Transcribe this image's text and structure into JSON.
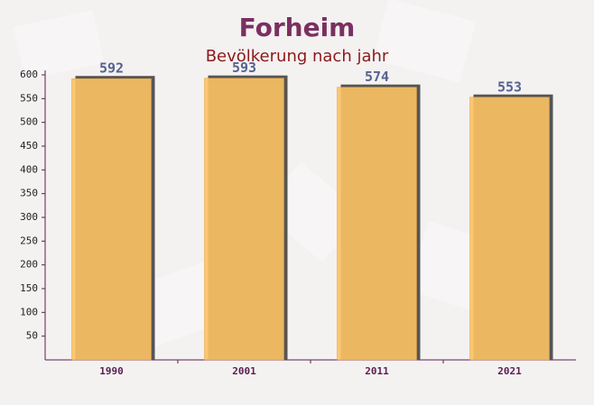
{
  "chart_data": {
    "type": "bar",
    "title": "Forheim",
    "subtitle": "Bevölkerung nach jahr",
    "categories": [
      "1990",
      "2001",
      "2011",
      "2021"
    ],
    "values": [
      592,
      593,
      574,
      553
    ],
    "color": "#fcc263",
    "ylim": [
      0,
      600
    ],
    "yticks": [
      50,
      100,
      150,
      200,
      250,
      300,
      350,
      400,
      450,
      500,
      550,
      600
    ],
    "grid": false
  }
}
